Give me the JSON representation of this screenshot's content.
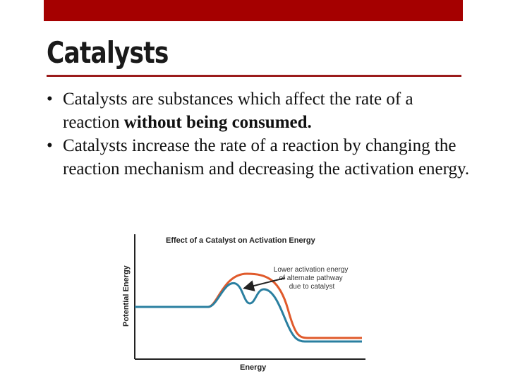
{
  "slide": {
    "title": "Catalysts",
    "bullets": [
      {
        "marker": "•",
        "text_before": "Catalysts are substances which affect the rate of a reaction ",
        "emphasis": "without being consumed.",
        "text_after": ""
      },
      {
        "marker": "•",
        "text_before": "Catalysts increase the rate of a reaction by changing the reaction mechanism and decreasing the activation energy.",
        "emphasis": "",
        "text_after": ""
      }
    ]
  },
  "diagram": {
    "title": "Effect of a Catalyst on Activation Energy",
    "y_axis_label": "Potential Energy",
    "x_axis_label": "Energy",
    "annotation_lines": [
      "Lower activation energy",
      "of alternate pathway",
      "due to catalyst"
    ],
    "colors": {
      "uncatalyzed": "#e05a2b",
      "catalyzed": "#2a7fa0",
      "axis": "#222222",
      "accent_bar": "#a50000"
    }
  }
}
